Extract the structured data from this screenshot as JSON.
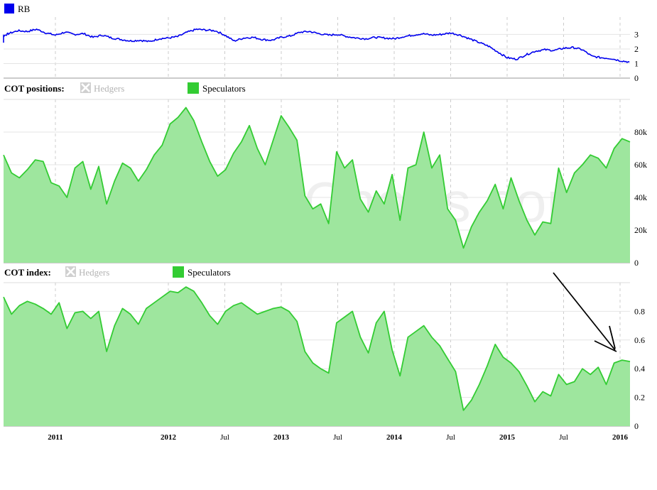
{
  "watermark": "© SpreadCharts.com",
  "colors": {
    "rb_line": "#0000ee",
    "spec_line": "#33cc33",
    "spec_fill": "#9ee69e",
    "hedgers_disabled": "#b4b4b4",
    "grid": "#cccccc",
    "arrow": "#000000"
  },
  "x_axis": {
    "ticks": [
      {
        "label": "2011",
        "date": "2011-01",
        "bold": true
      },
      {
        "label": "2012",
        "date": "2012-01",
        "bold": true
      },
      {
        "label": "Jul",
        "date": "2012-07",
        "bold": false
      },
      {
        "label": "2013",
        "date": "2013-01",
        "bold": true
      },
      {
        "label": "Jul",
        "date": "2013-07",
        "bold": false
      },
      {
        "label": "2014",
        "date": "2014-01",
        "bold": true
      },
      {
        "label": "Jul",
        "date": "2014-07",
        "bold": false
      },
      {
        "label": "2015",
        "date": "2015-01",
        "bold": true
      },
      {
        "label": "Jul",
        "date": "2015-07",
        "bold": false
      },
      {
        "label": "2016",
        "date": "2016-01",
        "bold": true
      }
    ]
  },
  "chart_data": [
    {
      "type": "line",
      "legend": [
        "RB"
      ],
      "y_ticks": [
        0,
        1,
        2,
        3
      ],
      "ylim": [
        0,
        3.8
      ],
      "series": [
        {
          "name": "RB",
          "points": [
            [
              "2010-05",
              2.45
            ],
            [
              "2010-06",
              2.55
            ],
            [
              "2010-07",
              2.9
            ],
            [
              "2010-08",
              3.05
            ],
            [
              "2010-09",
              3.25
            ],
            [
              "2010-10",
              3.2
            ],
            [
              "2010-11",
              3.35
            ],
            [
              "2010-12",
              3.1
            ],
            [
              "2011-01",
              2.95
            ],
            [
              "2011-02",
              3.15
            ],
            [
              "2011-03",
              3.0
            ],
            [
              "2011-04",
              3.05
            ],
            [
              "2011-05",
              2.8
            ],
            [
              "2011-06",
              2.95
            ],
            [
              "2011-07",
              2.75
            ],
            [
              "2011-08",
              2.65
            ],
            [
              "2011-09",
              2.55
            ],
            [
              "2011-10",
              2.6
            ],
            [
              "2011-11",
              2.5
            ],
            [
              "2011-12",
              2.7
            ],
            [
              "2012-01",
              2.75
            ],
            [
              "2012-02",
              2.85
            ],
            [
              "2012-03",
              3.15
            ],
            [
              "2012-04",
              3.35
            ],
            [
              "2012-05",
              3.3
            ],
            [
              "2012-06",
              3.25
            ],
            [
              "2012-07",
              2.95
            ],
            [
              "2012-08",
              2.55
            ],
            [
              "2012-09",
              2.75
            ],
            [
              "2012-10",
              2.8
            ],
            [
              "2012-11",
              2.65
            ],
            [
              "2012-12",
              2.6
            ],
            [
              "2013-01",
              2.8
            ],
            [
              "2013-02",
              2.9
            ],
            [
              "2013-03",
              3.15
            ],
            [
              "2013-04",
              3.2
            ],
            [
              "2013-05",
              3.05
            ],
            [
              "2013-06",
              2.95
            ],
            [
              "2013-07",
              3.0
            ],
            [
              "2013-08",
              2.85
            ],
            [
              "2013-09",
              2.75
            ],
            [
              "2013-10",
              2.7
            ],
            [
              "2013-11",
              2.8
            ],
            [
              "2013-12",
              2.75
            ],
            [
              "2014-01",
              2.7
            ],
            [
              "2014-02",
              2.85
            ],
            [
              "2014-03",
              2.95
            ],
            [
              "2014-04",
              3.05
            ],
            [
              "2014-05",
              2.95
            ],
            [
              "2014-06",
              3.0
            ],
            [
              "2014-07",
              3.1
            ],
            [
              "2014-08",
              2.95
            ],
            [
              "2014-09",
              2.7
            ],
            [
              "2014-10",
              2.45
            ],
            [
              "2014-11",
              2.2
            ],
            [
              "2014-12",
              1.8
            ],
            [
              "2015-01",
              1.4
            ],
            [
              "2015-02",
              1.3
            ],
            [
              "2015-03",
              1.6
            ],
            [
              "2015-04",
              1.85
            ],
            [
              "2015-05",
              1.95
            ],
            [
              "2015-06",
              1.9
            ],
            [
              "2015-07",
              2.05
            ],
            [
              "2015-08",
              2.1
            ],
            [
              "2015-09",
              1.95
            ],
            [
              "2015-10",
              1.5
            ],
            [
              "2015-11",
              1.4
            ],
            [
              "2015-12",
              1.35
            ],
            [
              "2016-01",
              1.2
            ],
            [
              "2016-02",
              1.1
            ]
          ]
        }
      ]
    },
    {
      "type": "area",
      "title": "COT positions:",
      "legend": [
        "Hedgers",
        "Speculators"
      ],
      "legend_disabled": [
        "Hedgers"
      ],
      "y_ticks": [
        "0",
        "20k",
        "40k",
        "60k",
        "80k"
      ],
      "y_tick_values": [
        0,
        20000,
        40000,
        60000,
        80000
      ],
      "ylim": [
        0,
        100000
      ],
      "series": [
        {
          "name": "Speculators",
          "points": [
            [
              "2010-05",
              66000
            ],
            [
              "2010-06",
              55000
            ],
            [
              "2010-07",
              52000
            ],
            [
              "2010-08",
              57000
            ],
            [
              "2010-09",
              63000
            ],
            [
              "2010-10",
              62000
            ],
            [
              "2010-11",
              49000
            ],
            [
              "2010-12",
              47000
            ],
            [
              "2011-01",
              40000
            ],
            [
              "2011-02",
              58000
            ],
            [
              "2011-03",
              62000
            ],
            [
              "2011-04",
              45000
            ],
            [
              "2011-05",
              59000
            ],
            [
              "2011-06",
              36000
            ],
            [
              "2011-07",
              50000
            ],
            [
              "2011-08",
              61000
            ],
            [
              "2011-09",
              58000
            ],
            [
              "2011-10",
              50000
            ],
            [
              "2011-11",
              57000
            ],
            [
              "2011-12",
              66000
            ],
            [
              "2012-01",
              72000
            ],
            [
              "2012-02",
              85000
            ],
            [
              "2012-03",
              89000
            ],
            [
              "2012-04",
              95000
            ],
            [
              "2012-05",
              87000
            ],
            [
              "2012-06",
              74000
            ],
            [
              "2012-07",
              62000
            ],
            [
              "2012-08",
              53000
            ],
            [
              "2012-09",
              57000
            ],
            [
              "2012-10",
              67000
            ],
            [
              "2012-11",
              74000
            ],
            [
              "2012-12",
              84000
            ],
            [
              "2013-01",
              70000
            ],
            [
              "2013-02",
              60000
            ],
            [
              "2013-03",
              75000
            ],
            [
              "2013-04",
              90000
            ],
            [
              "2013-05",
              83000
            ],
            [
              "2013-06",
              75000
            ],
            [
              "2013-07",
              41000
            ],
            [
              "2013-08",
              33000
            ],
            [
              "2013-09",
              36000
            ],
            [
              "2013-10",
              24000
            ],
            [
              "2013-11",
              68000
            ],
            [
              "2013-12",
              58000
            ],
            [
              "2014-01",
              63000
            ],
            [
              "2014-02",
              39000
            ],
            [
              "2014-03",
              31000
            ],
            [
              "2014-04",
              44000
            ],
            [
              "2014-05",
              36000
            ],
            [
              "2014-06",
              54000
            ],
            [
              "2014-07",
              26000
            ],
            [
              "2014-08",
              58000
            ],
            [
              "2014-09",
              60000
            ],
            [
              "2014-10",
              80000
            ],
            [
              "2014-11",
              58000
            ],
            [
              "2014-12",
              66000
            ],
            [
              "2015-01",
              33000
            ],
            [
              "2015-02",
              26000
            ],
            [
              "2015-03",
              9000
            ],
            [
              "2015-04",
              22000
            ],
            [
              "2015-05",
              31000
            ],
            [
              "2015-06",
              38000
            ],
            [
              "2015-07",
              48000
            ],
            [
              "2015-08",
              33000
            ],
            [
              "2015-09",
              52000
            ],
            [
              "2015-10",
              38000
            ],
            [
              "2015-11",
              26000
            ],
            [
              "2015-12",
              17000
            ],
            [
              "2016-01",
              25000
            ],
            [
              "2016-02",
              24000
            ],
            [
              "2016-03",
              58000
            ],
            [
              "2016-04",
              43000
            ],
            [
              "2016-05",
              55000
            ],
            [
              "2016-06",
              60000
            ],
            [
              "2016-07",
              66000
            ],
            [
              "2016-08",
              64000
            ],
            [
              "2016-09",
              58000
            ],
            [
              "2016-10",
              70000
            ],
            [
              "2016-11",
              76000
            ],
            [
              "2016-12",
              74000
            ]
          ]
        }
      ]
    },
    {
      "type": "area",
      "title": "COT index:",
      "legend": [
        "Hedgers",
        "Speculators"
      ],
      "legend_disabled": [
        "Hedgers"
      ],
      "y_ticks": [
        "0",
        "0.2",
        "0.4",
        "0.6",
        "0.8"
      ],
      "y_tick_values": [
        0,
        0.2,
        0.4,
        0.6,
        0.8
      ],
      "ylim": [
        0,
        1.0
      ],
      "series": [
        {
          "name": "Speculators",
          "points": [
            [
              "2010-05",
              0.9
            ],
            [
              "2010-06",
              0.78
            ],
            [
              "2010-07",
              0.84
            ],
            [
              "2010-08",
              0.87
            ],
            [
              "2010-09",
              0.85
            ],
            [
              "2010-10",
              0.82
            ],
            [
              "2010-11",
              0.78
            ],
            [
              "2010-12",
              0.86
            ],
            [
              "2011-01",
              0.68
            ],
            [
              "2011-02",
              0.79
            ],
            [
              "2011-03",
              0.8
            ],
            [
              "2011-04",
              0.75
            ],
            [
              "2011-05",
              0.8
            ],
            [
              "2011-06",
              0.52
            ],
            [
              "2011-07",
              0.7
            ],
            [
              "2011-08",
              0.82
            ],
            [
              "2011-09",
              0.78
            ],
            [
              "2011-10",
              0.71
            ],
            [
              "2011-11",
              0.82
            ],
            [
              "2011-12",
              0.86
            ],
            [
              "2012-01",
              0.9
            ],
            [
              "2012-02",
              0.94
            ],
            [
              "2012-03",
              0.93
            ],
            [
              "2012-04",
              0.97
            ],
            [
              "2012-05",
              0.94
            ],
            [
              "2012-06",
              0.86
            ],
            [
              "2012-07",
              0.77
            ],
            [
              "2012-08",
              0.71
            ],
            [
              "2012-09",
              0.8
            ],
            [
              "2012-10",
              0.84
            ],
            [
              "2012-11",
              0.86
            ],
            [
              "2012-12",
              0.82
            ],
            [
              "2013-01",
              0.78
            ],
            [
              "2013-02",
              0.8
            ],
            [
              "2013-03",
              0.82
            ],
            [
              "2013-04",
              0.83
            ],
            [
              "2013-05",
              0.8
            ],
            [
              "2013-06",
              0.73
            ],
            [
              "2013-07",
              0.52
            ],
            [
              "2013-08",
              0.44
            ],
            [
              "2013-09",
              0.4
            ],
            [
              "2013-10",
              0.37
            ],
            [
              "2013-11",
              0.72
            ],
            [
              "2013-12",
              0.76
            ],
            [
              "2014-01",
              0.8
            ],
            [
              "2014-02",
              0.62
            ],
            [
              "2014-03",
              0.51
            ],
            [
              "2014-04",
              0.72
            ],
            [
              "2014-05",
              0.8
            ],
            [
              "2014-06",
              0.53
            ],
            [
              "2014-07",
              0.35
            ],
            [
              "2014-08",
              0.62
            ],
            [
              "2014-09",
              0.66
            ],
            [
              "2014-10",
              0.7
            ],
            [
              "2014-11",
              0.62
            ],
            [
              "2014-12",
              0.56
            ],
            [
              "2015-01",
              0.47
            ],
            [
              "2015-02",
              0.38
            ],
            [
              "2015-03",
              0.11
            ],
            [
              "2015-04",
              0.18
            ],
            [
              "2015-05",
              0.29
            ],
            [
              "2015-06",
              0.42
            ],
            [
              "2015-07",
              0.57
            ],
            [
              "2015-08",
              0.48
            ],
            [
              "2015-09",
              0.44
            ],
            [
              "2015-10",
              0.38
            ],
            [
              "2015-11",
              0.28
            ],
            [
              "2015-12",
              0.17
            ],
            [
              "2016-01",
              0.24
            ],
            [
              "2016-02",
              0.21
            ],
            [
              "2016-03",
              0.36
            ],
            [
              "2016-04",
              0.29
            ],
            [
              "2016-05",
              0.31
            ],
            [
              "2016-06",
              0.4
            ],
            [
              "2016-07",
              0.36
            ],
            [
              "2016-08",
              0.41
            ],
            [
              "2016-09",
              0.29
            ],
            [
              "2016-10",
              0.44
            ],
            [
              "2016-11",
              0.46
            ],
            [
              "2016-12",
              0.45
            ]
          ]
        }
      ]
    }
  ]
}
